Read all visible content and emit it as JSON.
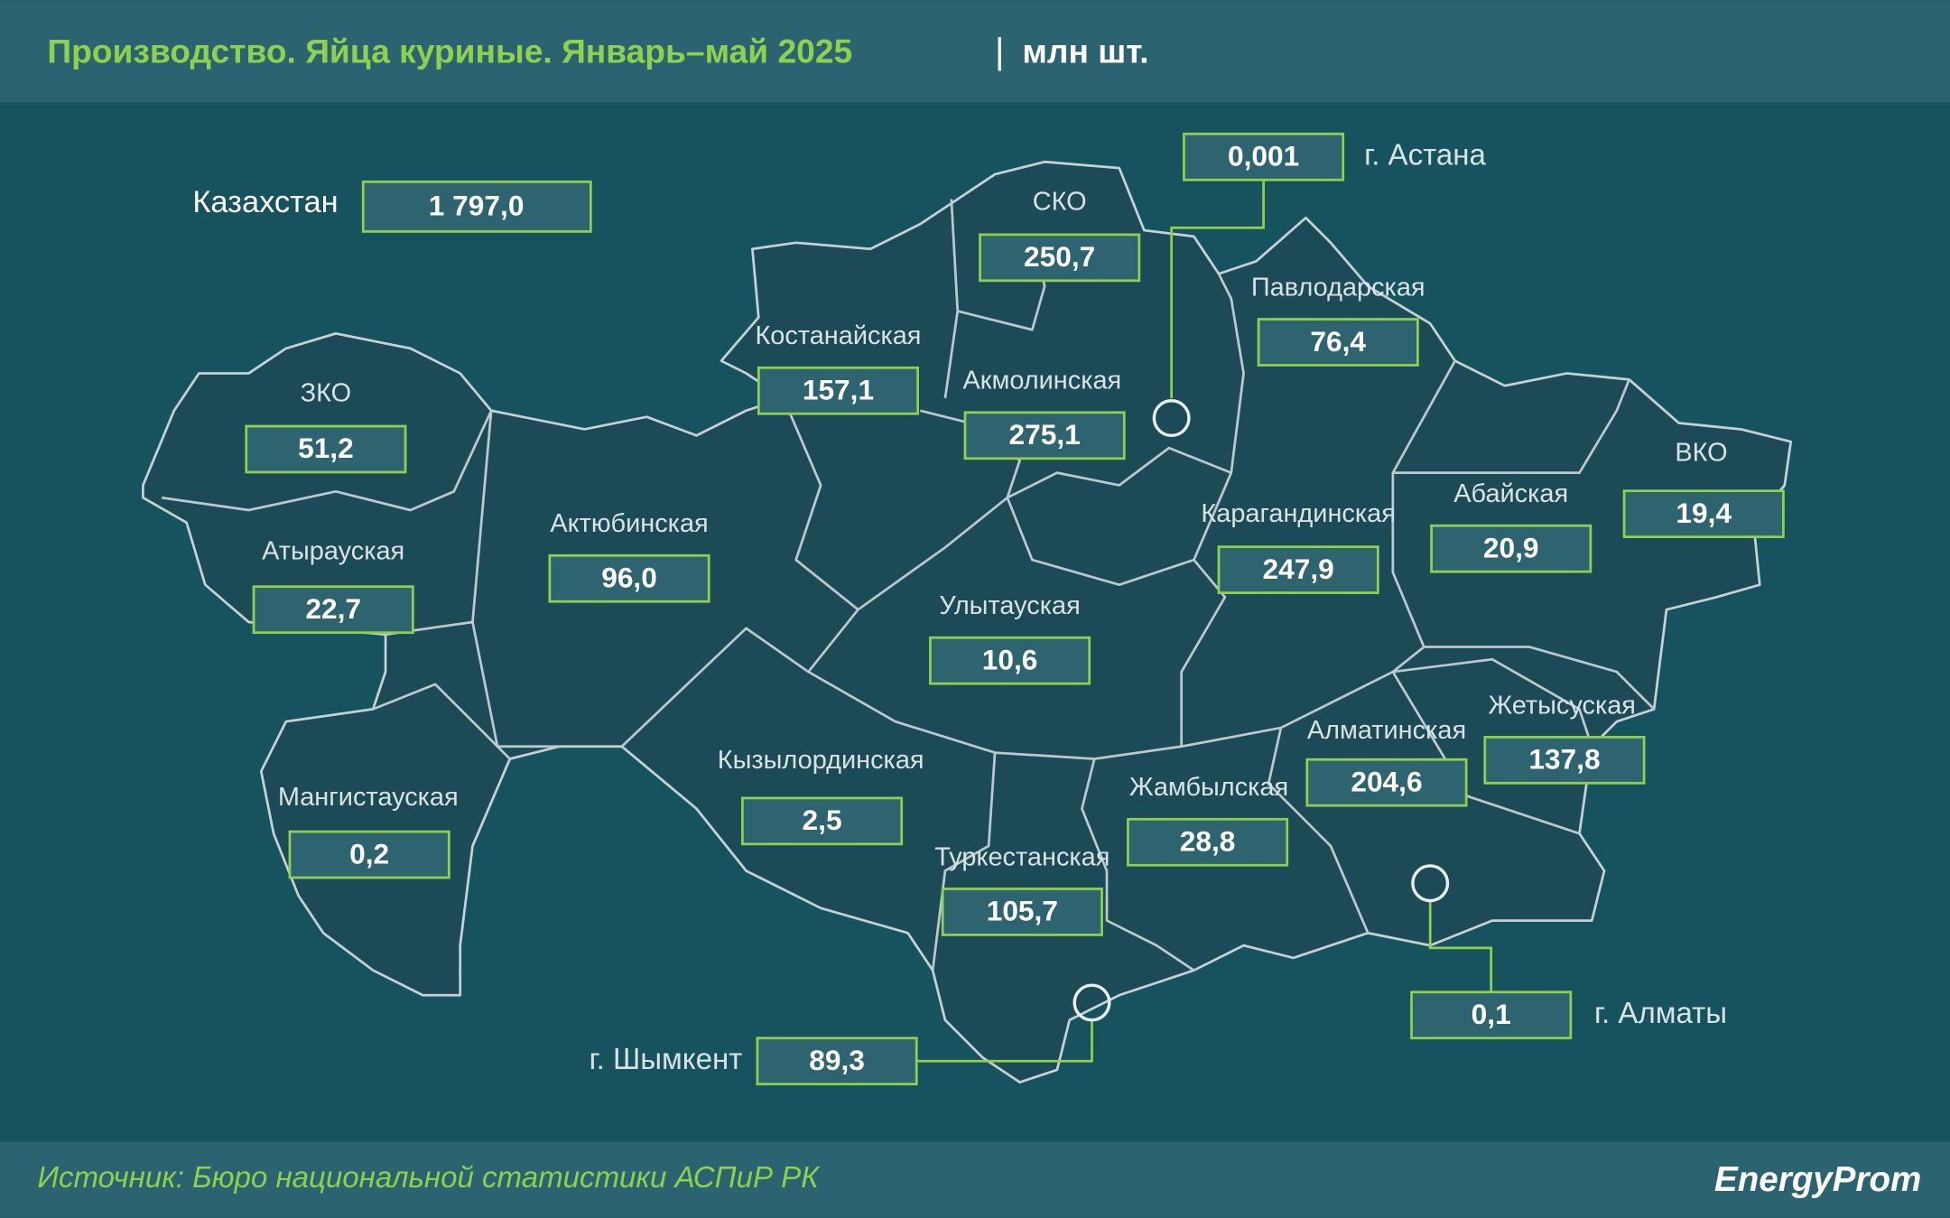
{
  "header": {
    "title": "Производство. Яйца куриные. Январь–май 2025",
    "separator": "|",
    "unit": "млн шт."
  },
  "total": {
    "label": "Казахстан",
    "value": "1 797,0"
  },
  "regions": [
    {
      "name": "ЗКО",
      "value": "51,2"
    },
    {
      "name": "Атырауская",
      "value": "22,7"
    },
    {
      "name": "Актюбинская",
      "value": "96,0"
    },
    {
      "name": "Мангистауская",
      "value": "0,2"
    },
    {
      "name": "Костанайская",
      "value": "157,1"
    },
    {
      "name": "СКО",
      "value": "250,7"
    },
    {
      "name": "Акмолинская",
      "value": "275,1"
    },
    {
      "name": "Павлодарская",
      "value": "76,4"
    },
    {
      "name": "Карагандинская",
      "value": "247,9"
    },
    {
      "name": "Абайская",
      "value": "20,9"
    },
    {
      "name": "ВКО",
      "value": "19,4"
    },
    {
      "name": "Улытауская",
      "value": "10,6"
    },
    {
      "name": "Кызылординская",
      "value": "2,5"
    },
    {
      "name": "Жамбылская",
      "value": "28,8"
    },
    {
      "name": "Туркестанская",
      "value": "105,7"
    },
    {
      "name": "Алматинская",
      "value": "204,6"
    },
    {
      "name": "Жетысуская",
      "value": "137,8"
    }
  ],
  "cities": [
    {
      "name": "г. Астана",
      "value": "0,001"
    },
    {
      "name": "г. Алматы",
      "value": "0,1"
    },
    {
      "name": "г. Шымкент",
      "value": "89,3"
    }
  ],
  "footer": {
    "source": "Источник: Бюро национальной статистики АСПиР РК",
    "logo": "EnergyProm"
  }
}
